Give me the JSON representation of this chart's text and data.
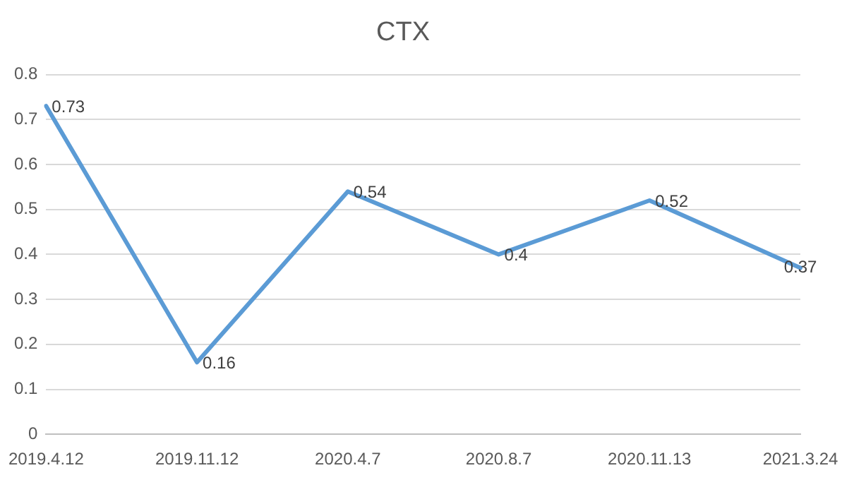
{
  "chart_data": {
    "type": "line",
    "title": "CTX",
    "categories": [
      "2019.4.12",
      "2019.11.12",
      "2020.4.7",
      "2020.8.7",
      "2020.11.13",
      "2021.3.24"
    ],
    "series": [
      {
        "color": "#5b9bd5",
        "values": [
          0.73,
          0.16,
          0.54,
          0.4,
          0.52,
          0.37
        ]
      }
    ],
    "ylim": [
      0,
      0.8
    ],
    "yticks": [
      0,
      0.1,
      0.2,
      0.3,
      0.4,
      0.5,
      0.6,
      0.7,
      0.8
    ],
    "grid": "y",
    "legend": false,
    "marker": "none",
    "line_style": "solid",
    "data_labels": true
  }
}
